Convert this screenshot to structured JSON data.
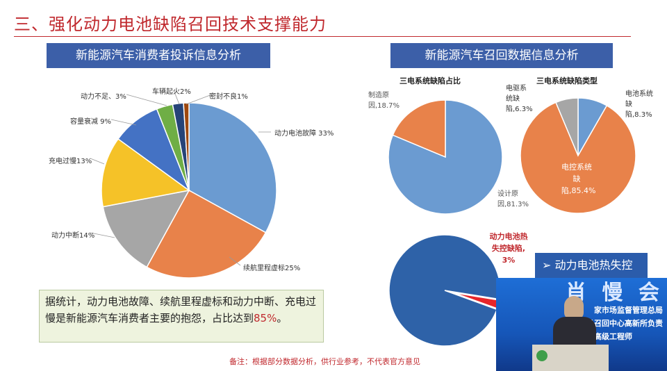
{
  "slide": {
    "title": "三、强化动力电池缺陷召回技术支撑能力",
    "left_header": "新能源汽车消费者投诉信息分析",
    "right_header": "新能源汽车召回数据信息分析",
    "note_text": "据统计，动力电池故障、续航里程虚标和动力中断、充电过慢是新能源汽车消费者主要的抱怨，占比达到",
    "note_highlight": "85%",
    "note_end": "。",
    "footnote": "备注：根据部分数据分析，供行业参考，不代表官方意见"
  },
  "video": {
    "badge": "➢  动力电池热失控",
    "line1": "家市场监督管理总局",
    "line2": "缺    品召回中心高新所负责",
    "line3": "正高级工程师",
    "banner_text": "肖 慢 会"
  },
  "chart_data": [
    {
      "type": "pie",
      "title": "",
      "slices": [
        {
          "label": "动力电池故障 33%",
          "value": 33,
          "color": "#6b9bd1"
        },
        {
          "label": "续航里程虚标25%",
          "value": 25,
          "color": "#e8824a"
        },
        {
          "label": "动力中断14%",
          "value": 14,
          "color": "#a6a6a6"
        },
        {
          "label": "充电过慢13%",
          "value": 13,
          "color": "#f5c228"
        },
        {
          "label": "容量衰减 9%",
          "value": 9,
          "color": "#4472c4"
        },
        {
          "label": "动力不足、3%",
          "value": 3,
          "color": "#6fae45"
        },
        {
          "label": "车辆起火2%",
          "value": 2,
          "color": "#264478"
        },
        {
          "label": "密封不良1%",
          "value": 1,
          "color": "#9e480e"
        }
      ]
    },
    {
      "type": "pie",
      "title": "三电系统缺陷占比",
      "slices": [
        {
          "label": "设计原因,81.3%",
          "value": 81.3,
          "color": "#6b9bd1"
        },
        {
          "label": "制造原因,18.7%",
          "value": 18.7,
          "color": "#e8824a"
        }
      ]
    },
    {
      "type": "pie",
      "title": "三电系统缺陷类型",
      "slices": [
        {
          "label": "电池系统缺陷,8.3%",
          "value": 8.3,
          "color": "#6b9bd1"
        },
        {
          "label": "电控系统缺陷,85.4%",
          "value": 85.4,
          "color": "#e8824a"
        },
        {
          "label": "电驱系统缺陷,6.3%",
          "value": 6.3,
          "color": "#a6a6a6"
        }
      ]
    },
    {
      "type": "pie",
      "title": "",
      "slices": [
        {
          "label": "",
          "value": 97,
          "color": "#2e62a8"
        },
        {
          "label": "动力电池热失控缺陷, 3%",
          "value": 3,
          "color": "#e8262a"
        }
      ]
    }
  ]
}
